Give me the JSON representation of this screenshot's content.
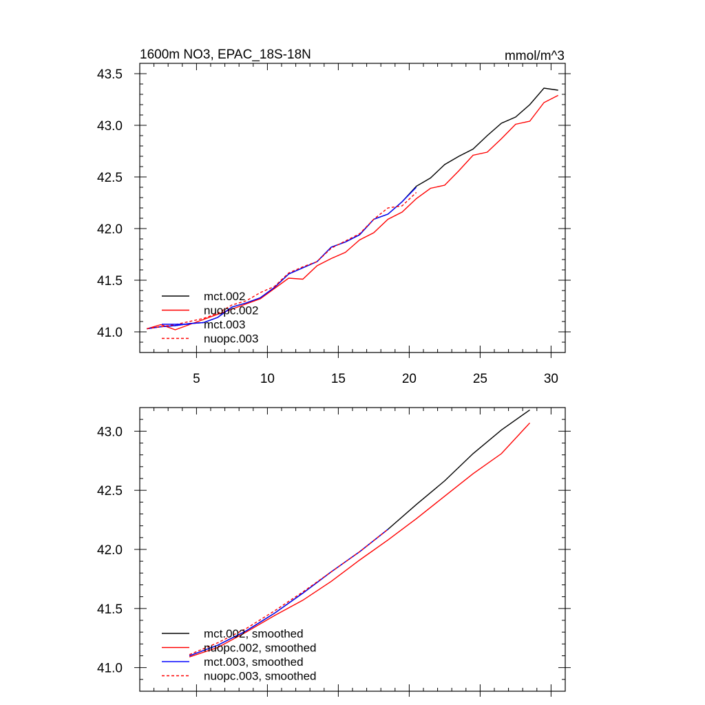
{
  "chart_data": [
    {
      "type": "line",
      "title": "1600m NO3, EPAC_18S-18N",
      "units": "mmol/m^3",
      "xlabel": "",
      "ylabel": "",
      "xlim": [
        1,
        31
      ],
      "ylim": [
        40.8,
        43.6
      ],
      "x_ticks": [
        5,
        10,
        15,
        20,
        25,
        30
      ],
      "x_tick_labels": [
        "5",
        "10",
        "15",
        "20",
        "25",
        "30"
      ],
      "y_ticks": [
        41.0,
        41.5,
        42.0,
        42.5,
        43.0,
        43.5
      ],
      "y_tick_labels": [
        "41.0",
        "41.5",
        "42.0",
        "42.5",
        "43.0",
        "43.5"
      ],
      "legend_position": "bottom-left",
      "series": [
        {
          "name": "mct.002",
          "color": "#000000",
          "dash": "solid",
          "x": [
            1.5,
            2.5,
            3.5,
            4.5,
            5.5,
            6.5,
            7.5,
            8.5,
            9.5,
            10.5,
            11.5,
            12.5,
            13.5,
            14.5,
            15.5,
            16.5,
            17.5,
            18.5,
            19.5,
            20.5,
            21.5,
            22.5,
            23.5,
            24.5,
            25.5,
            26.5,
            27.5,
            28.5,
            29.5,
            30.5
          ],
          "values": [
            41.03,
            41.05,
            41.06,
            41.08,
            41.09,
            41.14,
            41.24,
            41.28,
            41.33,
            41.43,
            41.56,
            41.62,
            41.68,
            41.82,
            41.87,
            41.94,
            42.09,
            42.14,
            42.26,
            42.41,
            42.49,
            42.62,
            42.7,
            42.77,
            42.9,
            43.02,
            43.08,
            43.2,
            43.36,
            43.34
          ]
        },
        {
          "name": "nuopc.002",
          "color": "#ff0000",
          "dash": "solid",
          "x": [
            1.5,
            2.5,
            3.5,
            4.5,
            5.5,
            6.5,
            7.5,
            8.5,
            9.5,
            10.5,
            11.5,
            12.5,
            13.5,
            14.5,
            15.5,
            16.5,
            17.5,
            18.5,
            19.5,
            20.5,
            21.5,
            22.5,
            23.5,
            24.5,
            25.5,
            26.5,
            27.5,
            28.5,
            29.5,
            30.5
          ],
          "values": [
            41.03,
            41.07,
            41.02,
            41.07,
            41.12,
            41.17,
            41.22,
            41.27,
            41.32,
            41.42,
            41.52,
            41.51,
            41.64,
            41.71,
            41.77,
            41.89,
            41.96,
            42.09,
            42.16,
            42.29,
            42.39,
            42.42,
            42.56,
            42.71,
            42.74,
            42.87,
            43.01,
            43.04,
            43.22,
            43.29
          ]
        },
        {
          "name": "mct.003",
          "color": "#0000ff",
          "dash": "solid",
          "x": [
            1.5,
            2.5,
            3.5,
            4.5,
            5.5,
            6.5,
            7.5,
            8.5,
            9.5,
            10.5,
            11.5,
            12.5,
            13.5,
            14.5,
            15.5,
            16.5,
            17.5,
            18.5,
            19.5,
            20.5
          ],
          "values": [
            41.03,
            41.05,
            41.06,
            41.08,
            41.09,
            41.14,
            41.24,
            41.28,
            41.33,
            41.43,
            41.56,
            41.62,
            41.68,
            41.82,
            41.87,
            41.94,
            42.09,
            42.14,
            42.26,
            42.4
          ]
        },
        {
          "name": "nuopc.003",
          "color": "#ff0000",
          "dash": "dashed",
          "x": [
            1.5,
            2.5,
            3.5,
            4.5,
            5.5,
            6.5,
            7.5,
            8.5,
            9.5,
            10.5,
            11.5,
            12.5,
            13.5,
            14.5,
            15.5,
            16.5,
            17.5,
            18.5,
            19.5,
            20.5
          ],
          "values": [
            41.03,
            41.05,
            41.07,
            41.1,
            41.13,
            41.18,
            41.26,
            41.3,
            41.38,
            41.44,
            41.57,
            41.63,
            41.68,
            41.81,
            41.88,
            41.95,
            42.09,
            42.2,
            42.22,
            42.35
          ]
        }
      ]
    },
    {
      "type": "line",
      "title": "",
      "xlabel": "",
      "ylabel": "",
      "xlim": [
        1,
        31
      ],
      "ylim": [
        40.8,
        43.2
      ],
      "x_ticks": [
        5,
        10,
        15,
        20,
        25,
        30
      ],
      "x_tick_labels": [],
      "y_ticks": [
        41.0,
        41.5,
        42.0,
        42.5,
        43.0
      ],
      "y_tick_labels": [
        "41.0",
        "41.5",
        "42.0",
        "42.5",
        "43.0"
      ],
      "legend_position": "bottom-left",
      "series": [
        {
          "name": "mct.002, smoothed",
          "color": "#000000",
          "dash": "solid",
          "x": [
            4.5,
            6.5,
            8.5,
            10.5,
            12.5,
            14.5,
            16.5,
            18.5,
            20.5,
            22.5,
            24.5,
            26.5,
            28.5
          ],
          "values": [
            41.1,
            41.19,
            41.31,
            41.46,
            41.63,
            41.81,
            41.98,
            42.17,
            42.38,
            42.58,
            42.81,
            43.01,
            43.18
          ]
        },
        {
          "name": "nuopc.002, smoothed",
          "color": "#ff0000",
          "dash": "solid",
          "x": [
            4.5,
            6.5,
            8.5,
            10.5,
            12.5,
            14.5,
            16.5,
            18.5,
            20.5,
            22.5,
            24.5,
            26.5,
            28.5
          ],
          "values": [
            41.09,
            41.17,
            41.3,
            41.44,
            41.57,
            41.73,
            41.91,
            42.08,
            42.26,
            42.45,
            42.64,
            42.81,
            43.07
          ]
        },
        {
          "name": "mct.003, smoothed",
          "color": "#0000ff",
          "dash": "solid",
          "x": [
            4.5,
            6.5,
            8.5,
            10.5,
            12.5,
            14.5,
            16.5,
            18.5
          ],
          "values": [
            41.1,
            41.19,
            41.31,
            41.46,
            41.63,
            41.81,
            41.98,
            42.17
          ]
        },
        {
          "name": "nuopc.003, smoothed",
          "color": "#ff0000",
          "dash": "dashed",
          "x": [
            4.5,
            6.5,
            8.5,
            10.5,
            12.5,
            14.5,
            16.5,
            18.5
          ],
          "values": [
            41.11,
            41.21,
            41.33,
            41.48,
            41.64,
            41.81,
            41.98,
            42.17
          ]
        }
      ]
    }
  ]
}
